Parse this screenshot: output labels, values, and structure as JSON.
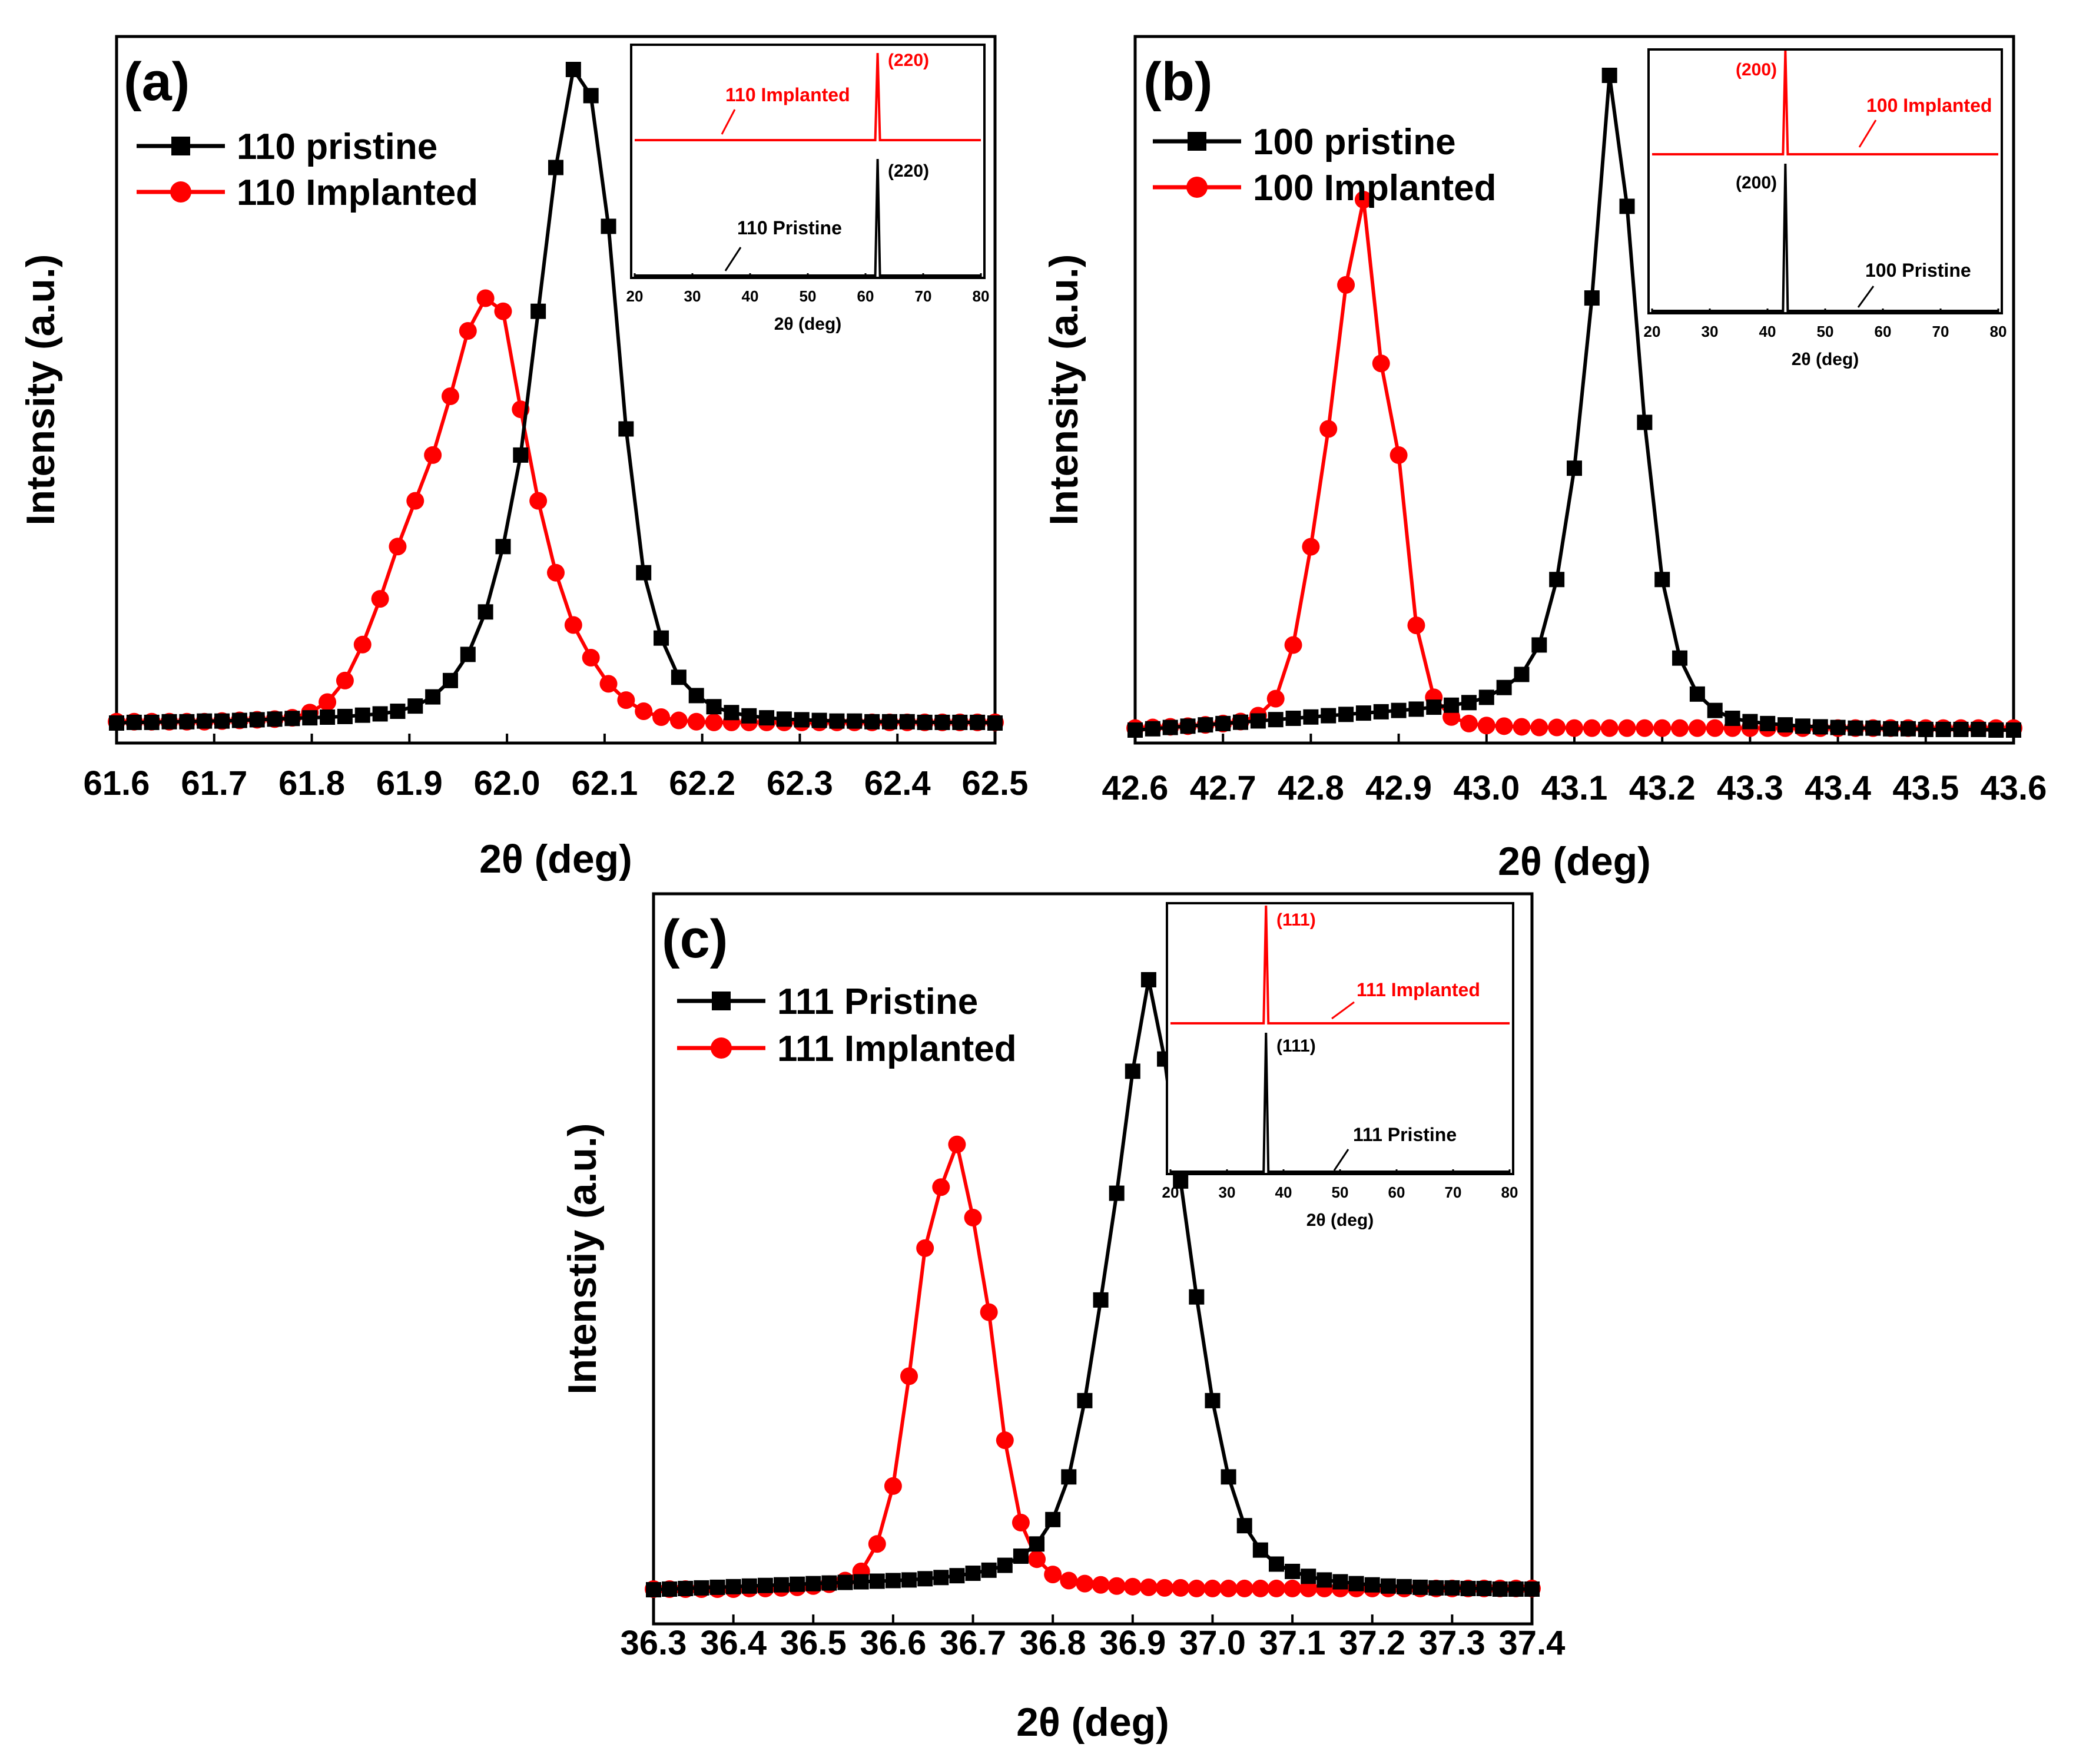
{
  "chart_data": [
    {
      "type": "line",
      "panel_label": "(a)",
      "xlabel": "2θ (deg)",
      "ylabel": "Intensity (a.u.)",
      "xlim": [
        61.6,
        62.5
      ],
      "ylim": [
        0,
        100
      ],
      "xticks": [
        61.6,
        61.7,
        61.8,
        61.9,
        62.0,
        62.1,
        62.2,
        62.3,
        62.4,
        62.5
      ],
      "xtick_labels": [
        "61.6",
        "61.7",
        "61.8",
        "61.9",
        "62.0",
        "62.1",
        "62.2",
        "62.3",
        "62.4",
        "62.5"
      ],
      "legend": [
        "110 pristine",
        "110 Implanted"
      ],
      "legend_position": "top-left",
      "series": [
        {
          "name": "110 pristine",
          "color": "#000000",
          "marker": "square",
          "x": [
            61.6,
            61.618,
            61.636,
            61.654,
            61.672,
            61.69,
            61.708,
            61.726,
            61.744,
            61.762,
            61.78,
            61.798,
            61.816,
            61.834,
            61.852,
            61.87,
            61.888,
            61.906,
            61.924,
            61.942,
            61.96,
            61.978,
            61.996,
            62.014,
            62.032,
            62.05,
            62.068,
            62.086,
            62.104,
            62.122,
            62.14,
            62.158,
            62.176,
            62.194,
            62.212,
            62.23,
            62.248,
            62.266,
            62.284,
            62.302,
            62.32,
            62.338,
            62.356,
            62.374,
            62.392,
            62.41,
            62.428,
            62.446,
            62.464,
            62.482,
            62.5
          ],
          "y": [
            0.0,
            0.1,
            0.1,
            0.2,
            0.2,
            0.3,
            0.3,
            0.4,
            0.5,
            0.6,
            0.7,
            0.8,
            0.9,
            1.0,
            1.2,
            1.4,
            1.8,
            2.6,
            4.0,
            6.5,
            10.5,
            17.0,
            27.0,
            41.0,
            63.0,
            85.0,
            100.0,
            96.0,
            76.0,
            45.0,
            23.0,
            13.0,
            7.0,
            4.2,
            2.5,
            1.6,
            1.1,
            0.8,
            0.6,
            0.5,
            0.4,
            0.3,
            0.3,
            0.2,
            0.2,
            0.2,
            0.1,
            0.1,
            0.1,
            0.1,
            0.0
          ]
        },
        {
          "name": "110 Implanted",
          "color": "#ff0000",
          "marker": "circle",
          "x": [
            61.6,
            61.618,
            61.636,
            61.654,
            61.672,
            61.69,
            61.708,
            61.726,
            61.744,
            61.762,
            61.78,
            61.798,
            61.816,
            61.834,
            61.852,
            61.87,
            61.888,
            61.906,
            61.924,
            61.942,
            61.96,
            61.978,
            61.996,
            62.014,
            62.032,
            62.05,
            62.068,
            62.086,
            62.104,
            62.122,
            62.14,
            62.158,
            62.176,
            62.194,
            62.212,
            62.23,
            62.248,
            62.266,
            62.284,
            62.302,
            62.32,
            62.338,
            62.356,
            62.374,
            62.392,
            62.41,
            62.428,
            62.446,
            62.464,
            62.482,
            62.5
          ],
          "y": [
            0.2,
            0.2,
            0.2,
            0.2,
            0.2,
            0.2,
            0.3,
            0.4,
            0.5,
            0.6,
            0.8,
            1.6,
            3.2,
            6.5,
            12.0,
            19.0,
            27.0,
            34.0,
            41.0,
            50.0,
            60.0,
            65.0,
            63.0,
            48.0,
            34.0,
            23.0,
            15.0,
            10.0,
            6.0,
            3.5,
            1.8,
            0.9,
            0.4,
            0.2,
            0.1,
            0.1,
            0.1,
            0.1,
            0.1,
            0.1,
            0.1,
            0.1,
            0.1,
            0.1,
            0.1,
            0.1,
            0.1,
            0.1,
            0.1,
            0.1,
            0.1
          ]
        }
      ],
      "inset": {
        "xlabel": "2θ (deg)",
        "xlim": [
          20,
          80
        ],
        "xticks": [
          20,
          30,
          40,
          50,
          60,
          70,
          80
        ],
        "xtick_labels": [
          "20",
          "30",
          "40",
          "50",
          "60",
          "70",
          "80"
        ],
        "peak": 62.1,
        "series": [
          {
            "name": "110 Pristine",
            "color": "#000000",
            "label": "110 Pristine",
            "peak_label": "(220)"
          },
          {
            "name": "110 Implanted",
            "color": "#ff0000",
            "label": "110 Implanted",
            "peak_label": "(220)"
          }
        ]
      }
    },
    {
      "type": "line",
      "panel_label": "(b)",
      "xlabel": "2θ (deg)",
      "ylabel": "Intensity (a.u.)",
      "xlim": [
        42.6,
        43.6
      ],
      "ylim": [
        0,
        100
      ],
      "xticks": [
        42.6,
        42.7,
        42.8,
        42.9,
        43.0,
        43.1,
        43.2,
        43.3,
        43.4,
        43.5,
        43.6
      ],
      "xtick_labels": [
        "42.6",
        "42.7",
        "42.8",
        "42.9",
        "43.0",
        "43.1",
        "43.2",
        "43.3",
        "43.4",
        "43.5",
        "43.6"
      ],
      "legend": [
        "100 pristine",
        "100 Implanted"
      ],
      "legend_position": "top-left",
      "series": [
        {
          "name": "100 pristine",
          "color": "#000000",
          "marker": "square",
          "x": [
            42.6,
            42.62,
            42.64,
            42.66,
            42.68,
            42.7,
            42.72,
            42.74,
            42.76,
            42.78,
            42.8,
            42.82,
            42.84,
            42.86,
            42.88,
            42.9,
            42.92,
            42.94,
            42.96,
            42.98,
            43.0,
            43.02,
            43.04,
            43.06,
            43.08,
            43.1,
            43.12,
            43.14,
            43.16,
            43.18,
            43.2,
            43.22,
            43.24,
            43.26,
            43.28,
            43.3,
            43.32,
            43.34,
            43.36,
            43.38,
            43.4,
            43.42,
            43.44,
            43.46,
            43.48,
            43.5,
            43.52,
            43.54,
            43.56,
            43.58,
            43.6
          ],
          "y": [
            0.0,
            0.2,
            0.4,
            0.6,
            0.8,
            1.0,
            1.2,
            1.4,
            1.6,
            1.8,
            2.0,
            2.2,
            2.4,
            2.6,
            2.8,
            3.0,
            3.2,
            3.5,
            3.8,
            4.2,
            5.0,
            6.5,
            8.5,
            13.0,
            23.0,
            40.0,
            66.0,
            100.0,
            80.0,
            47.0,
            23.0,
            11.0,
            5.5,
            3.0,
            1.8,
            1.3,
            1.0,
            0.8,
            0.6,
            0.5,
            0.4,
            0.3,
            0.3,
            0.2,
            0.2,
            0.1,
            0.1,
            0.1,
            0.1,
            0.0,
            0.0
          ]
        },
        {
          "name": "100 Implanted",
          "color": "#ff0000",
          "marker": "circle",
          "x": [
            42.6,
            42.62,
            42.64,
            42.66,
            42.68,
            42.7,
            42.72,
            42.74,
            42.76,
            42.78,
            42.8,
            42.82,
            42.84,
            42.86,
            42.88,
            42.9,
            42.92,
            42.94,
            42.96,
            42.98,
            43.0,
            43.02,
            43.04,
            43.06,
            43.08,
            43.1,
            43.12,
            43.14,
            43.16,
            43.18,
            43.2,
            43.22,
            43.24,
            43.26,
            43.28,
            43.3,
            43.32,
            43.34,
            43.36,
            43.38,
            43.4,
            43.42,
            43.44,
            43.46,
            43.48,
            43.5,
            43.52,
            43.54,
            43.56,
            43.58,
            43.6
          ],
          "y": [
            0.3,
            0.4,
            0.5,
            0.6,
            0.8,
            1.0,
            1.3,
            2.2,
            4.8,
            13.0,
            28.0,
            46.0,
            68.0,
            81.0,
            56.0,
            42.0,
            16.0,
            5.0,
            2.0,
            1.0,
            0.7,
            0.6,
            0.5,
            0.4,
            0.4,
            0.3,
            0.3,
            0.3,
            0.3,
            0.3,
            0.3,
            0.3,
            0.3,
            0.3,
            0.3,
            0.3,
            0.3,
            0.3,
            0.3,
            0.3,
            0.3,
            0.3,
            0.3,
            0.3,
            0.3,
            0.3,
            0.3,
            0.3,
            0.3,
            0.3,
            0.3
          ]
        }
      ],
      "inset": {
        "xlabel": "2θ (deg)",
        "xlim": [
          20,
          80
        ],
        "xticks": [
          20,
          30,
          40,
          50,
          60,
          70,
          80
        ],
        "xtick_labels": [
          "20",
          "30",
          "40",
          "50",
          "60",
          "70",
          "80"
        ],
        "peak": 43.1,
        "series": [
          {
            "name": "100 Pristine",
            "color": "#000000",
            "label": "100 Pristine",
            "peak_label": "(200)"
          },
          {
            "name": "100 Implanted",
            "color": "#ff0000",
            "label": "100 Implanted",
            "peak_label": "(200)"
          }
        ]
      }
    },
    {
      "type": "line",
      "panel_label": "(c)",
      "xlabel": "2θ (deg)",
      "ylabel": "Intenstiy (a.u.)",
      "xlim": [
        36.3,
        37.4
      ],
      "ylim": [
        0,
        100
      ],
      "xticks": [
        36.3,
        36.4,
        36.5,
        36.6,
        36.7,
        36.8,
        36.9,
        37.0,
        37.1,
        37.2,
        37.3,
        37.4
      ],
      "xtick_labels": [
        "36.3",
        "36.4",
        "36.5",
        "36.6",
        "36.7",
        "36.8",
        "36.9",
        "37.0",
        "37.1",
        "37.2",
        "37.3",
        "37.4"
      ],
      "legend": [
        "111 Pristine",
        "111 Implanted"
      ],
      "legend_position": "top-left",
      "series": [
        {
          "name": "111 Pristine",
          "color": "#000000",
          "marker": "square",
          "x": [
            36.3,
            36.32,
            36.34,
            36.36,
            36.38,
            36.4,
            36.42,
            36.44,
            36.46,
            36.48,
            36.5,
            36.52,
            36.54,
            36.56,
            36.58,
            36.6,
            36.62,
            36.64,
            36.66,
            36.68,
            36.7,
            36.72,
            36.74,
            36.76,
            36.78,
            36.8,
            36.82,
            36.84,
            36.86,
            36.88,
            36.9,
            36.92,
            36.94,
            36.96,
            36.98,
            37.0,
            37.02,
            37.04,
            37.06,
            37.08,
            37.1,
            37.12,
            37.14,
            37.16,
            37.18,
            37.2,
            37.22,
            37.24,
            37.26,
            37.28,
            37.3,
            37.32,
            37.34,
            37.36,
            37.38,
            37.4
          ],
          "y": [
            0.0,
            0.1,
            0.2,
            0.3,
            0.4,
            0.5,
            0.6,
            0.7,
            0.8,
            0.9,
            1.0,
            1.1,
            1.2,
            1.3,
            1.4,
            1.5,
            1.6,
            1.8,
            2.0,
            2.3,
            2.7,
            3.2,
            4.0,
            5.5,
            7.5,
            11.5,
            18.5,
            31.0,
            47.5,
            65.0,
            85.0,
            100.0,
            87.0,
            67.0,
            48.0,
            31.0,
            18.5,
            10.5,
            6.5,
            4.2,
            3.0,
            2.2,
            1.6,
            1.3,
            1.0,
            0.8,
            0.6,
            0.5,
            0.4,
            0.3,
            0.3,
            0.2,
            0.2,
            0.1,
            0.1,
            0.1
          ]
        },
        {
          "name": "111 Implanted",
          "color": "#ff0000",
          "marker": "circle",
          "x": [
            36.3,
            36.32,
            36.34,
            36.36,
            36.38,
            36.4,
            36.42,
            36.44,
            36.46,
            36.48,
            36.5,
            36.52,
            36.54,
            36.56,
            36.58,
            36.6,
            36.62,
            36.64,
            36.66,
            36.68,
            36.7,
            36.72,
            36.74,
            36.76,
            36.78,
            36.8,
            36.82,
            36.84,
            36.86,
            36.88,
            36.9,
            36.92,
            36.94,
            36.96,
            36.98,
            37.0,
            37.02,
            37.04,
            37.06,
            37.08,
            37.1,
            37.12,
            37.14,
            37.16,
            37.18,
            37.2,
            37.22,
            37.24,
            37.26,
            37.28,
            37.3,
            37.32,
            37.34,
            37.36,
            37.38,
            37.4
          ],
          "y": [
            0.1,
            0.1,
            0.1,
            0.1,
            0.1,
            0.1,
            0.2,
            0.2,
            0.3,
            0.4,
            0.6,
            0.9,
            1.5,
            3.0,
            7.5,
            17.0,
            35.0,
            56.0,
            66.0,
            73.0,
            61.0,
            45.5,
            24.5,
            11.0,
            5.0,
            2.5,
            1.5,
            1.0,
            0.8,
            0.6,
            0.5,
            0.4,
            0.3,
            0.3,
            0.2,
            0.2,
            0.2,
            0.2,
            0.2,
            0.2,
            0.2,
            0.2,
            0.2,
            0.2,
            0.2,
            0.2,
            0.2,
            0.2,
            0.2,
            0.2,
            0.2,
            0.2,
            0.2,
            0.2,
            0.2,
            0.2
          ]
        }
      ],
      "inset": {
        "xlabel": "2θ (deg)",
        "xlim": [
          20,
          80
        ],
        "xticks": [
          20,
          30,
          40,
          50,
          60,
          70,
          80
        ],
        "xtick_labels": [
          "20",
          "30",
          "40",
          "50",
          "60",
          "70",
          "80"
        ],
        "peak": 36.9,
        "series": [
          {
            "name": "111 Pristine",
            "color": "#000000",
            "label": "111 Pristine",
            "peak_label": "(111)"
          },
          {
            "name": "111 Implanted",
            "color": "#ff0000",
            "label": "111 Implanted",
            "peak_label": "(111)"
          }
        ]
      }
    }
  ]
}
